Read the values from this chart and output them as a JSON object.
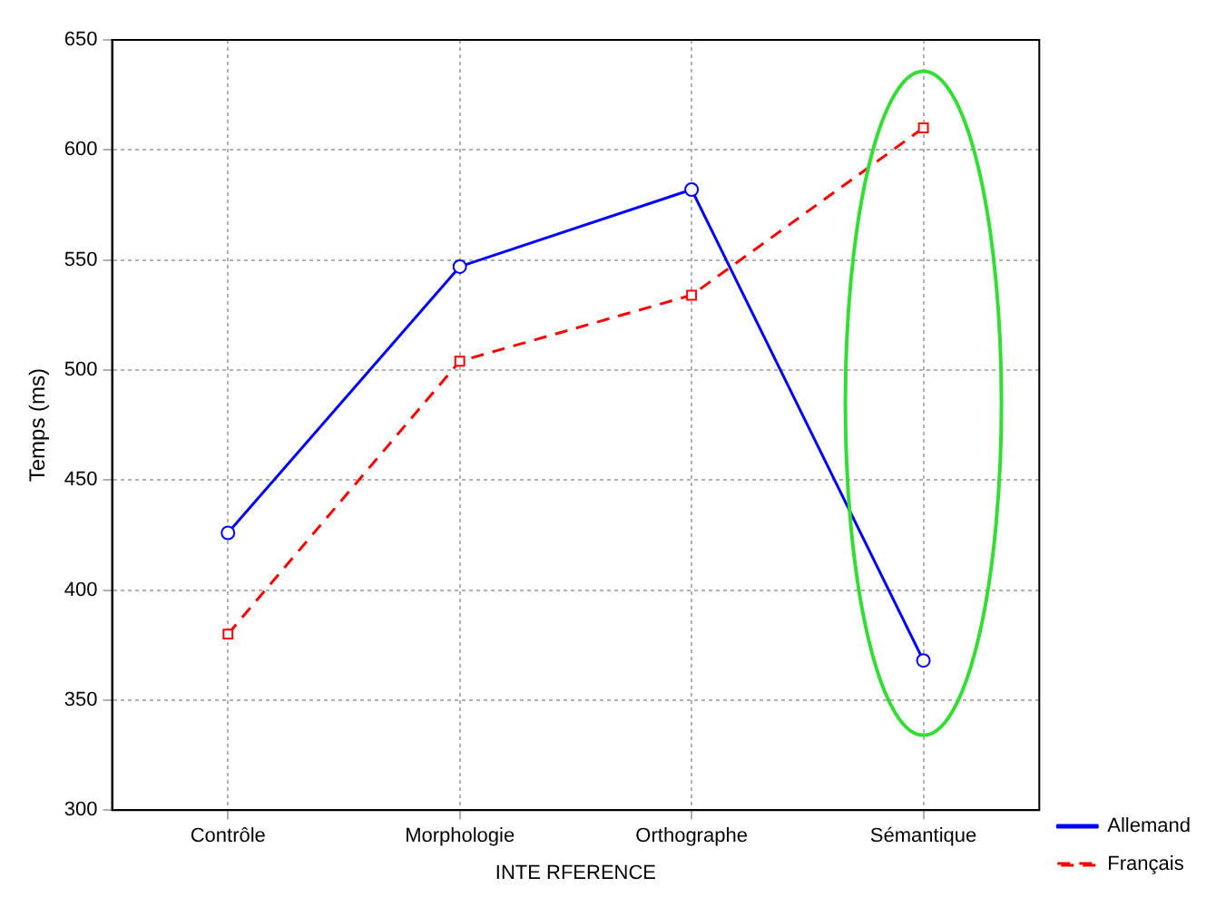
{
  "chart_data": {
    "type": "line",
    "xlabel": "INTE RFERENCE",
    "ylabel": "Temps (ms)",
    "categories": [
      "Contrôle",
      "Morphologie",
      "Orthographe",
      "Sémantique"
    ],
    "series": [
      {
        "name": "Allemand",
        "color": "#0000ff",
        "values": [
          426,
          547,
          582,
          368
        ],
        "marker": "circle",
        "line_style": "solid"
      },
      {
        "name": "Français",
        "color": "#ff0000",
        "values": [
          380,
          504,
          534,
          610
        ],
        "marker": "square",
        "line_style": "dashed"
      }
    ],
    "ylim": [
      300,
      650
    ],
    "yticks": [
      300,
      350,
      400,
      450,
      500,
      550,
      600,
      650
    ],
    "grid": true,
    "legend": "bottom right"
  }
}
